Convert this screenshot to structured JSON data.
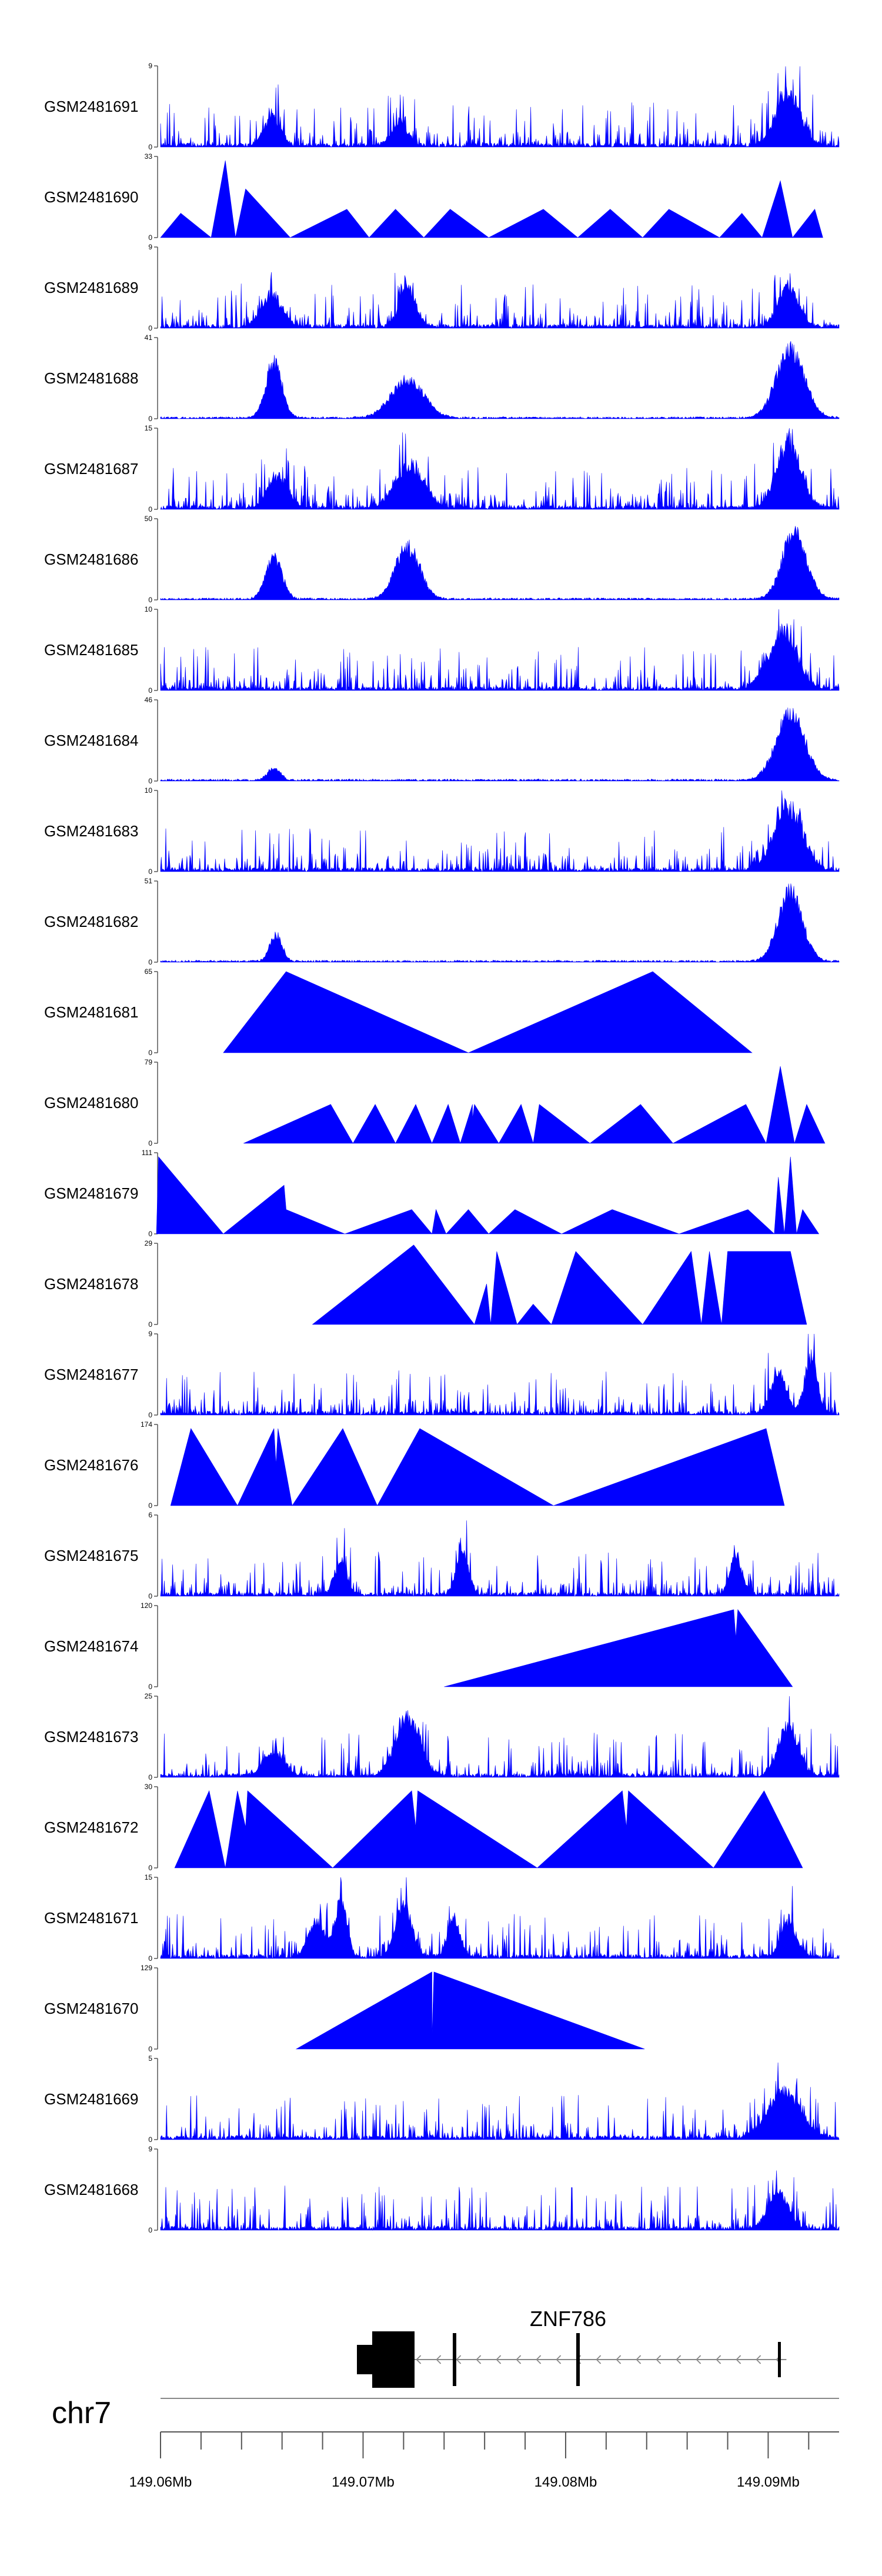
{
  "chart_data": {
    "type": "area",
    "title": "",
    "fill_color": "#0000ff",
    "x_range_mb": [
      149.06,
      149.0935
    ],
    "chromosome": "chr7",
    "gene": {
      "name": "ZNF786",
      "strand": "-",
      "start_mb": 149.0698,
      "end_mb": 149.0909
    },
    "axis_ticks": [
      {
        "value": 149.06,
        "label": "149.06Mb"
      },
      {
        "value": 149.07,
        "label": "149.07Mb"
      },
      {
        "value": 149.08,
        "label": "149.08Mb"
      },
      {
        "value": 149.09,
        "label": "149.09Mb"
      }
    ],
    "tracks": [
      {
        "name": "GSM2481691",
        "ymax": 9,
        "ylabels": [
          "9",
          "0"
        ],
        "style": "noisy",
        "peaks": [
          [
            149.0655,
            0.4,
            0.0004
          ],
          [
            149.0718,
            0.3,
            0.0004
          ],
          [
            149.091,
            0.75,
            0.0006
          ]
        ]
      },
      {
        "name": "GSM2481690",
        "ymax": 33,
        "ylabels": [
          "33",
          "0"
        ],
        "style": "tri",
        "verts": [
          [
            149.06,
            0.0
          ],
          [
            149.061,
            0.3
          ],
          [
            149.0625,
            0.0
          ],
          [
            149.0632,
            0.95
          ],
          [
            149.0637,
            0.0
          ],
          [
            149.0642,
            0.6
          ],
          [
            149.0664,
            0.0
          ],
          [
            149.0692,
            0.35
          ],
          [
            149.0703,
            0.0
          ],
          [
            149.0716,
            0.35
          ],
          [
            149.073,
            0.0
          ],
          [
            149.0743,
            0.35
          ],
          [
            149.0762,
            0.0
          ],
          [
            149.0789,
            0.35
          ],
          [
            149.0806,
            0.0
          ],
          [
            149.0822,
            0.35
          ],
          [
            149.0838,
            0.0
          ],
          [
            149.0851,
            0.35
          ],
          [
            149.0876,
            0.0
          ],
          [
            149.0887,
            0.3
          ],
          [
            149.0897,
            0.0
          ],
          [
            149.0906,
            0.7
          ],
          [
            149.0912,
            0.0
          ],
          [
            149.0923,
            0.35
          ],
          [
            149.0927,
            0.0
          ]
        ]
      },
      {
        "name": "GSM2481689",
        "ymax": 9,
        "ylabels": [
          "9",
          "0"
        ],
        "style": "noisy",
        "peaks": [
          [
            149.0655,
            0.45,
            0.0005
          ],
          [
            149.0722,
            0.55,
            0.0004
          ],
          [
            149.091,
            0.55,
            0.0005
          ]
        ]
      },
      {
        "name": "GSM2481688",
        "ymax": 41,
        "ylabels": [
          "41",
          "0"
        ],
        "style": "smooth",
        "peaks": [
          [
            149.0656,
            0.8,
            0.0004
          ],
          [
            149.0722,
            0.55,
            0.0008
          ],
          [
            149.0911,
            0.95,
            0.0007
          ]
        ]
      },
      {
        "name": "GSM2481687",
        "ymax": 15,
        "ylabels": [
          "15",
          "0"
        ],
        "style": "noisy",
        "peaks": [
          [
            149.0658,
            0.45,
            0.0005
          ],
          [
            149.0723,
            0.6,
            0.0007
          ],
          [
            149.091,
            0.9,
            0.0006
          ]
        ]
      },
      {
        "name": "GSM2481686",
        "ymax": 50,
        "ylabels": [
          "50",
          "0"
        ],
        "style": "smooth",
        "peaks": [
          [
            149.0656,
            0.6,
            0.0004
          ],
          [
            149.0722,
            0.75,
            0.0006
          ],
          [
            149.0913,
            0.95,
            0.0006
          ]
        ]
      },
      {
        "name": "GSM2481685",
        "ymax": 10,
        "ylabels": [
          "10",
          "0"
        ],
        "style": "noisy",
        "peaks": [
          [
            149.0907,
            0.8,
            0.0007
          ]
        ]
      },
      {
        "name": "GSM2481684",
        "ymax": 46,
        "ylabels": [
          "46",
          "0"
        ],
        "style": "smooth",
        "peaks": [
          [
            149.0656,
            0.18,
            0.0003
          ],
          [
            149.0911,
            0.95,
            0.0007
          ]
        ]
      },
      {
        "name": "GSM2481683",
        "ymax": 10,
        "ylabels": [
          "10",
          "0"
        ],
        "style": "noisy",
        "peaks": [
          [
            149.091,
            0.9,
            0.0007
          ]
        ]
      },
      {
        "name": "GSM2481682",
        "ymax": 51,
        "ylabels": [
          "51",
          "0"
        ],
        "style": "smooth",
        "peaks": [
          [
            149.0657,
            0.38,
            0.0003
          ],
          [
            149.0911,
            0.97,
            0.0006
          ]
        ]
      },
      {
        "name": "GSM2481681",
        "ymax": 65,
        "ylabels": [
          "65",
          "0"
        ],
        "style": "tri",
        "verts": [
          [
            149.0631,
            0.0
          ],
          [
            149.0662,
            1.0
          ],
          [
            149.0752,
            0.0
          ],
          [
            149.0843,
            1.0
          ],
          [
            149.0892,
            0.0
          ]
        ]
      },
      {
        "name": "GSM2481680",
        "ymax": 79,
        "ylabels": [
          "79",
          "0"
        ],
        "style": "tri",
        "verts": [
          [
            149.0641,
            0.0
          ],
          [
            149.0684,
            0.48
          ],
          [
            149.0695,
            0.0
          ],
          [
            149.0706,
            0.48
          ],
          [
            149.0716,
            0.0
          ],
          [
            149.0726,
            0.48
          ],
          [
            149.0734,
            0.0
          ],
          [
            149.0742,
            0.48
          ],
          [
            149.0748,
            0.0
          ],
          [
            149.0754,
            0.48
          ],
          [
            149.0754,
            0.3
          ],
          [
            149.0755,
            0.48
          ],
          [
            149.0767,
            0.0
          ],
          [
            149.0778,
            0.48
          ],
          [
            149.0784,
            0.0
          ],
          [
            149.0787,
            0.48
          ],
          [
            149.0812,
            0.0
          ],
          [
            149.0837,
            0.48
          ],
          [
            149.0853,
            0.0
          ],
          [
            149.0889,
            0.48
          ],
          [
            149.0899,
            0.0
          ],
          [
            149.0906,
            0.95
          ],
          [
            149.0913,
            0.0
          ],
          [
            149.0919,
            0.48
          ],
          [
            149.0928,
            0.0
          ]
        ]
      },
      {
        "name": "GSM2481679",
        "ymax": 111,
        "ylabels": [
          "111",
          "0"
        ],
        "style": "tri",
        "verts": [
          [
            149.0598,
            0.0
          ],
          [
            149.0599,
            0.95
          ],
          [
            149.0631,
            0.0
          ],
          [
            149.0661,
            0.6
          ],
          [
            149.0662,
            0.3
          ],
          [
            149.0691,
            0.0
          ],
          [
            149.0724,
            0.3
          ],
          [
            149.0734,
            0.0
          ],
          [
            149.0736,
            0.3
          ],
          [
            149.0741,
            0.0
          ],
          [
            149.0752,
            0.3
          ],
          [
            149.0762,
            0.0
          ],
          [
            149.0775,
            0.3
          ],
          [
            149.0798,
            0.0
          ],
          [
            149.0823,
            0.3
          ],
          [
            149.0856,
            0.0
          ],
          [
            149.089,
            0.3
          ],
          [
            149.0903,
            0.0
          ],
          [
            149.0905,
            0.7
          ],
          [
            149.0908,
            0.0
          ],
          [
            149.0911,
            0.95
          ],
          [
            149.0914,
            0.0
          ],
          [
            149.0917,
            0.3
          ],
          [
            149.0925,
            0.0
          ]
        ]
      },
      {
        "name": "GSM2481678",
        "ymax": 29,
        "ylabels": [
          "29",
          "0"
        ],
        "style": "tri",
        "verts": [
          [
            149.0675,
            0.0
          ],
          [
            149.0725,
            0.98
          ],
          [
            149.0755,
            0.0
          ],
          [
            149.0761,
            0.5
          ],
          [
            149.0763,
            0.0
          ],
          [
            149.0766,
            0.9
          ],
          [
            149.0776,
            0.0
          ],
          [
            149.0784,
            0.25
          ],
          [
            149.0793,
            0.0
          ],
          [
            149.0805,
            0.9
          ],
          [
            149.0838,
            0.0
          ],
          [
            149.0862,
            0.9
          ],
          [
            149.0867,
            0.0
          ],
          [
            149.0871,
            0.9
          ],
          [
            149.0877,
            0.0
          ],
          [
            149.088,
            0.9
          ],
          [
            149.0911,
            0.9
          ],
          [
            149.0919,
            0.0
          ]
        ]
      },
      {
        "name": "GSM2481677",
        "ymax": 9,
        "ylabels": [
          "9",
          "0"
        ],
        "style": "noisy",
        "peaks": [
          [
            149.0905,
            0.55,
            0.0004
          ],
          [
            149.0921,
            0.8,
            0.0003
          ]
        ]
      },
      {
        "name": "GSM2481676",
        "ymax": 174,
        "ylabels": [
          "174",
          "0"
        ],
        "style": "tri",
        "verts": [
          [
            149.0605,
            0.0
          ],
          [
            149.0615,
            0.95
          ],
          [
            149.0638,
            0.0
          ],
          [
            149.0656,
            0.95
          ],
          [
            149.0657,
            0.5
          ],
          [
            149.0658,
            0.95
          ],
          [
            149.0665,
            0.0
          ],
          [
            149.069,
            0.95
          ],
          [
            149.0707,
            0.0
          ],
          [
            149.0728,
            0.95
          ],
          [
            149.0794,
            0.0
          ],
          [
            149.0899,
            0.95
          ],
          [
            149.0908,
            0.0
          ]
        ]
      },
      {
        "name": "GSM2481675",
        "ymax": 6,
        "ylabels": [
          "6",
          "0"
        ],
        "style": "noisy",
        "peaks": [
          [
            149.0689,
            0.5,
            0.0003
          ],
          [
            149.0749,
            0.6,
            0.0003
          ],
          [
            149.0884,
            0.55,
            0.0003
          ]
        ]
      },
      {
        "name": "GSM2481674",
        "ymax": 120,
        "ylabels": [
          "120",
          "0"
        ],
        "style": "tri",
        "verts": [
          [
            149.074,
            0.0
          ],
          [
            149.0883,
            0.95
          ],
          [
            149.0884,
            0.6
          ],
          [
            149.0885,
            0.95
          ],
          [
            149.0912,
            0.0
          ]
        ]
      },
      {
        "name": "GSM2481673",
        "ymax": 25,
        "ylabels": [
          "25",
          "0"
        ],
        "style": "noisy",
        "peaks": [
          [
            149.0656,
            0.35,
            0.0005
          ],
          [
            149.0722,
            0.85,
            0.0006
          ],
          [
            149.091,
            0.7,
            0.0005
          ]
        ]
      },
      {
        "name": "GSM2481672",
        "ymax": 30,
        "ylabels": [
          "30",
          "0"
        ],
        "style": "tri",
        "verts": [
          [
            149.0607,
            0.0
          ],
          [
            149.0624,
            0.95
          ],
          [
            149.0632,
            0.0
          ],
          [
            149.0638,
            0.95
          ],
          [
            149.0642,
            0.5
          ],
          [
            149.0643,
            0.95
          ],
          [
            149.0685,
            0.0
          ],
          [
            149.0724,
            0.95
          ],
          [
            149.0726,
            0.5
          ],
          [
            149.0727,
            0.95
          ],
          [
            149.0786,
            0.0
          ],
          [
            149.0828,
            0.95
          ],
          [
            149.083,
            0.5
          ],
          [
            149.0831,
            0.95
          ],
          [
            149.0873,
            0.0
          ],
          [
            149.0898,
            0.95
          ],
          [
            149.0917,
            0.0
          ]
        ]
      },
      {
        "name": "GSM2481671",
        "ymax": 15,
        "ylabels": [
          "15",
          "0"
        ],
        "style": "noisy",
        "peaks": [
          [
            149.0677,
            0.5,
            0.0004
          ],
          [
            149.0689,
            0.8,
            0.0003
          ],
          [
            149.072,
            0.75,
            0.0004
          ],
          [
            149.0745,
            0.55,
            0.0003
          ],
          [
            149.091,
            0.5,
            0.0004
          ]
        ]
      },
      {
        "name": "GSM2481670",
        "ymax": 129,
        "ylabels": [
          "129",
          "0"
        ],
        "style": "tri",
        "verts": [
          [
            149.0667,
            0.0
          ],
          [
            149.0734,
            0.95
          ],
          [
            149.0734,
            0.1
          ],
          [
            149.0735,
            0.95
          ],
          [
            149.0839,
            0.0
          ]
        ]
      },
      {
        "name": "GSM2481669",
        "ymax": 5,
        "ylabels": [
          "5",
          "0"
        ],
        "style": "noisy",
        "peaks": [
          [
            149.0908,
            0.65,
            0.0008
          ]
        ]
      },
      {
        "name": "GSM2481668",
        "ymax": 9,
        "ylabels": [
          "9",
          "0"
        ],
        "style": "noisy",
        "peaks": [
          [
            149.0905,
            0.5,
            0.0005
          ]
        ]
      }
    ]
  }
}
